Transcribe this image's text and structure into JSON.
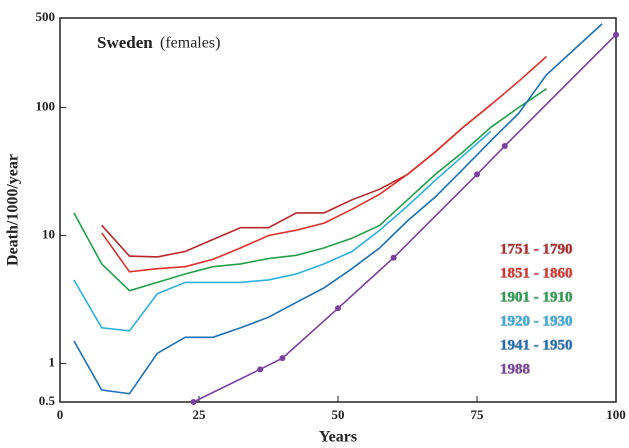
{
  "chart_data": {
    "type": "line",
    "title": "Sweden",
    "subtitle": "(females)",
    "x_label": "Years",
    "y_label": "Death/1000/year",
    "log_y": true,
    "xlim": [
      0,
      100
    ],
    "xticks": [
      0,
      25,
      50,
      75,
      100
    ],
    "ylim": [
      0.5,
      500
    ],
    "yticks": [
      0.5,
      1,
      10,
      100,
      500
    ],
    "legend": "right",
    "series": [
      {
        "name": "1751 - 1790",
        "color": "#b8252a",
        "markers": false,
        "x": [
          7.5,
          12.5,
          17.5,
          22.5,
          27.5,
          32.5,
          37.5,
          42.5,
          47.5,
          52.5,
          57.5,
          62.5,
          67.5,
          72.5,
          77.5
        ],
        "values": [
          12,
          6.9,
          6.8,
          7.5,
          9.3,
          11.5,
          11.5,
          15,
          15,
          19,
          23,
          30,
          45,
          70,
          105
        ]
      },
      {
        "name": "1851 - 1860",
        "color": "#e0302a",
        "markers": false,
        "x": [
          7.5,
          12.5,
          17.5,
          22.5,
          27.5,
          32.5,
          37.5,
          42.5,
          47.5,
          52.5,
          57.5,
          62.5,
          67.5,
          72.5,
          77.5,
          82.5,
          87.5
        ],
        "values": [
          10.5,
          5.2,
          5.5,
          5.7,
          6.5,
          8,
          10,
          11,
          12.5,
          16,
          21,
          30,
          45,
          70,
          105,
          160,
          250
        ]
      },
      {
        "name": "1901 - 1910",
        "color": "#21a04a",
        "markers": false,
        "x": [
          2.5,
          7.5,
          12.5,
          17.5,
          22.5,
          27.5,
          32.5,
          37.5,
          42.5,
          47.5,
          52.5,
          57.5,
          62.5,
          67.5,
          72.5,
          77.5,
          82.5,
          87.5
        ],
        "values": [
          15,
          6,
          3.7,
          4.3,
          5,
          5.7,
          6,
          6.6,
          7,
          8,
          9.5,
          12,
          19,
          30,
          45,
          70,
          100,
          140
        ]
      },
      {
        "name": "1920 - 1930",
        "color": "#2bb0e0",
        "markers": false,
        "x": [
          2.5,
          7.5,
          12.5,
          17.5,
          22.5,
          27.5,
          32.5,
          37.5,
          42.5,
          47.5,
          52.5,
          57.5,
          62.5,
          67.5,
          72.5,
          77.5
        ],
        "values": [
          4.5,
          1.9,
          1.8,
          3.5,
          4.3,
          4.3,
          4.3,
          4.5,
          5,
          6,
          7.5,
          11,
          17,
          27,
          42,
          65
        ]
      },
      {
        "name": "1941 - 1950",
        "color": "#1a70b8",
        "markers": false,
        "x": [
          2.5,
          7.5,
          12.5,
          17.5,
          22.5,
          27.5,
          32.5,
          37.5,
          42.5,
          47.5,
          52.5,
          57.5,
          62.5,
          67.5,
          72.5,
          77.5,
          82.5,
          87.5,
          97.5
        ],
        "values": [
          1.5,
          0.62,
          0.58,
          1.2,
          1.6,
          1.6,
          1.9,
          2.3,
          3,
          3.9,
          5.5,
          8,
          13,
          20,
          33,
          55,
          90,
          180,
          450
        ]
      },
      {
        "name": "1988",
        "color": "#7b3fa0",
        "markers": true,
        "x": [
          24,
          36,
          40,
          50,
          60,
          75,
          80,
          100
        ],
        "values": [
          0.5,
          0.9,
          1.1,
          2.7,
          6.7,
          30,
          50,
          370
        ]
      }
    ]
  }
}
